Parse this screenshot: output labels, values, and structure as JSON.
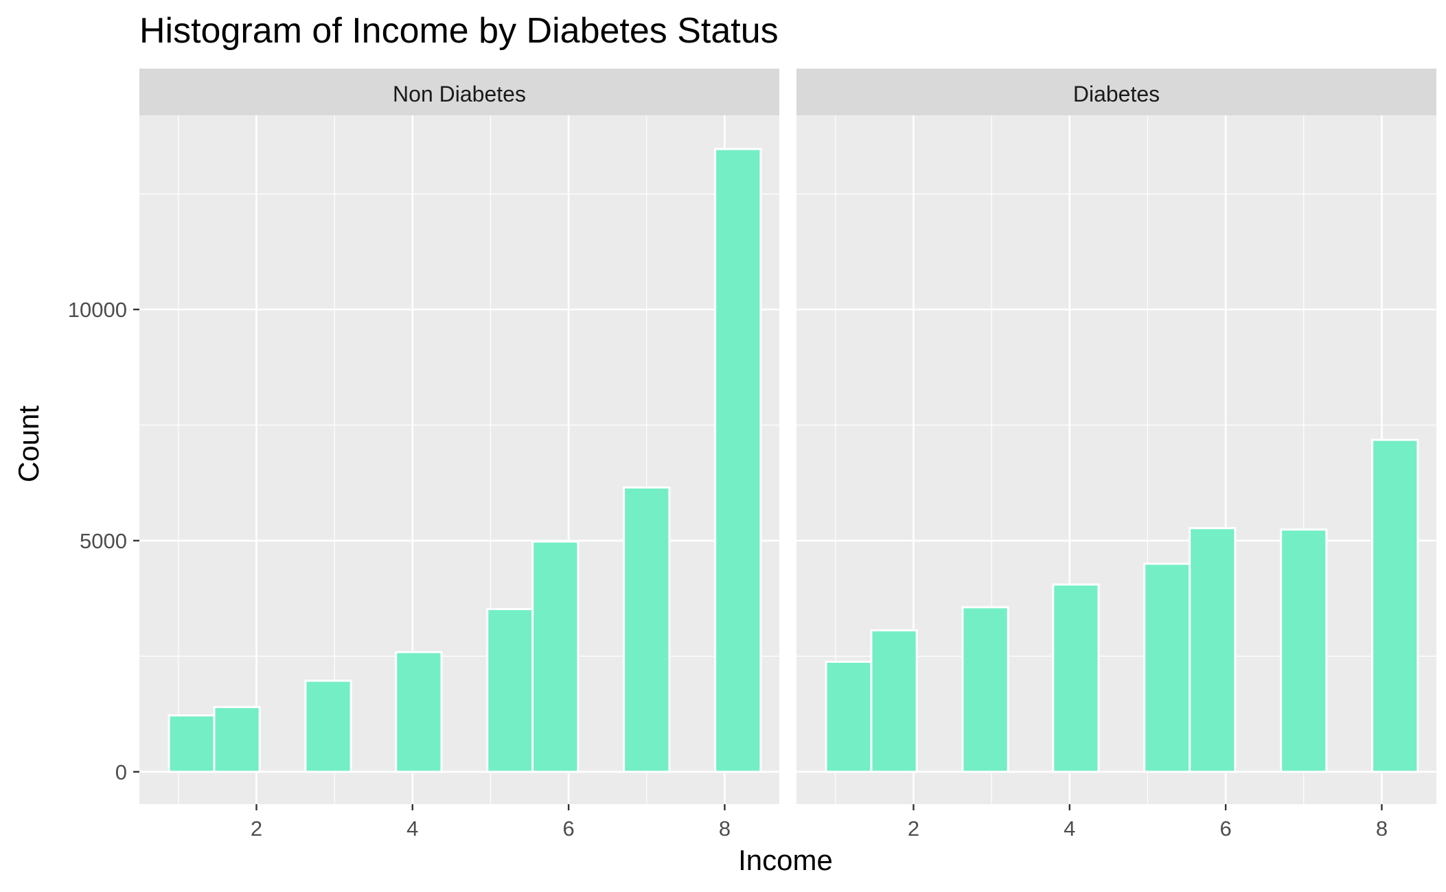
{
  "chart_data": {
    "type": "bar",
    "title": "Histogram of Income by Diabetes Status",
    "xlabel": "Income",
    "ylabel": "Count",
    "xlim": [
      0.5,
      8.7
    ],
    "ylim": [
      -700,
      14200
    ],
    "xticks": [
      2,
      4,
      6,
      8
    ],
    "yticks": [
      0,
      5000,
      10000
    ],
    "ytick_labels": [
      "0",
      "5000",
      "10000"
    ],
    "bin_width": 0.583,
    "grid": true,
    "fill_color": "#74EEC5",
    "panel_background": "#EBEBEB",
    "strip_background": "#D9D9D9",
    "panels": [
      {
        "label": "Non Diabetes",
        "bars": [
          {
            "center": 1.17,
            "count": 1220
          },
          {
            "center": 1.75,
            "count": 1400
          },
          {
            "center": 2.92,
            "count": 1970
          },
          {
            "center": 4.08,
            "count": 2590
          },
          {
            "center": 5.25,
            "count": 3520
          },
          {
            "center": 5.83,
            "count": 4980
          },
          {
            "center": 7.0,
            "count": 6150
          },
          {
            "center": 8.17,
            "count": 13470
          }
        ]
      },
      {
        "label": "Diabetes",
        "bars": [
          {
            "center": 1.17,
            "count": 2380
          },
          {
            "center": 1.75,
            "count": 3060
          },
          {
            "center": 2.92,
            "count": 3560
          },
          {
            "center": 4.08,
            "count": 4050
          },
          {
            "center": 5.25,
            "count": 4500
          },
          {
            "center": 5.83,
            "count": 5270
          },
          {
            "center": 7.0,
            "count": 5240
          },
          {
            "center": 8.17,
            "count": 7180
          }
        ]
      }
    ]
  }
}
